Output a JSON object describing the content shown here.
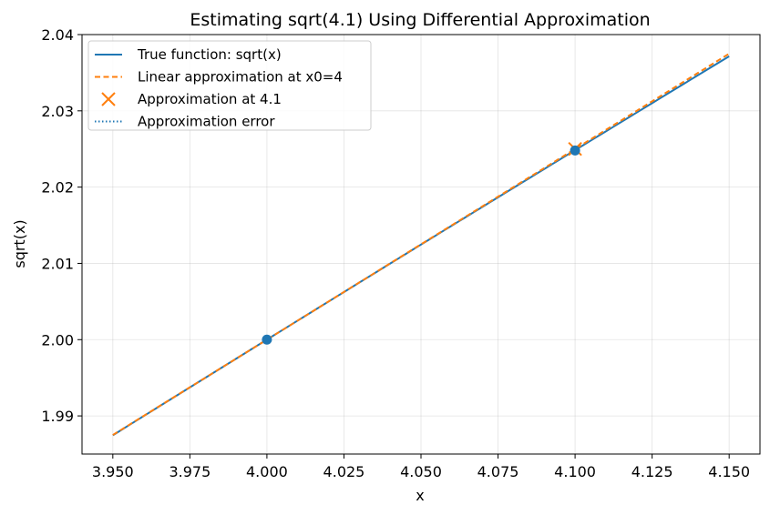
{
  "chart_data": {
    "type": "line",
    "title": "Estimating sqrt(4.1) Using Differential Approximation",
    "xlabel": "x",
    "ylabel": "sqrt(x)",
    "xlim": [
      3.94,
      4.16
    ],
    "ylim": [
      1.985,
      2.04
    ],
    "x_ticks": [
      3.95,
      3.975,
      4.0,
      4.025,
      4.05,
      4.075,
      4.1,
      4.125,
      4.15
    ],
    "x_tick_labels": [
      "3.950",
      "3.975",
      "4.000",
      "4.025",
      "4.050",
      "4.075",
      "4.100",
      "4.125",
      "4.150"
    ],
    "y_ticks": [
      1.99,
      2.0,
      2.01,
      2.02,
      2.03,
      2.04
    ],
    "y_tick_labels": [
      "1.99",
      "2.00",
      "2.01",
      "2.02",
      "2.03",
      "2.04"
    ],
    "grid": true,
    "legend_position": "top-left",
    "x_range": [
      3.95,
      4.15
    ],
    "series": [
      {
        "name": "True function: sqrt(x)",
        "style": "solid",
        "color": "#1f77b4",
        "function": "sqrt"
      },
      {
        "name": "Linear approximation at x0=4",
        "style": "dashed",
        "color": "#ff7f0e",
        "function": "linear",
        "x0": 4.0,
        "y0": 2.0,
        "slope": 0.25
      },
      {
        "name": "Approximation at 4.1",
        "style": "x-marker",
        "color": "#ff7f0e",
        "points": [
          [
            4.1,
            2.025
          ]
        ]
      },
      {
        "name": "Approximation error",
        "style": "dotted",
        "color": "#1f77b4",
        "points": [
          [
            4.1,
            2.0248
          ],
          [
            4.1,
            2.025
          ]
        ]
      }
    ],
    "marked_points": [
      {
        "x": 4.0,
        "y": 2.0,
        "color": "#1f77b4"
      },
      {
        "x": 4.1,
        "y": 2.0248,
        "color": "#1f77b4"
      }
    ]
  }
}
